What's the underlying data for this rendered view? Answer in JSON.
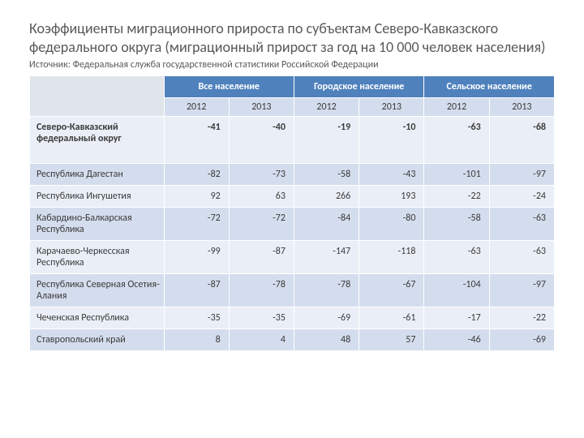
{
  "title": "Коэффициенты миграционного прироста по субъектам Северо-Кавказского федерального округа  (миграционный прирост  за год на 10 000 человек населения)",
  "source": "Источник: Федеральная служба государственной статистики Российской Федерации",
  "table": {
    "type": "table",
    "header_bg": "#4f81bd",
    "header_fg": "#ffffff",
    "subheader_bg": "#d4dded",
    "row_odd_bg": "#eaeff7",
    "row_even_bg": "#d4dded",
    "border_color": "#ffffff",
    "font_size": 12,
    "label_col_width": 165,
    "groups": [
      "Все население",
      "Городское население",
      "Сельское население"
    ],
    "years": [
      "2012",
      "2013"
    ],
    "rows": [
      {
        "label": "Северо-Кавказский федеральный округ",
        "bold": true,
        "values": [
          "-41",
          "-40",
          "-19",
          "-10",
          "-63",
          "-68"
        ]
      },
      {
        "label": "Республика Дагестан",
        "bold": false,
        "values": [
          "-82",
          "-73",
          "-58",
          "-43",
          "-101",
          "-97"
        ]
      },
      {
        "label": "Республика Ингушетия",
        "bold": false,
        "values": [
          "92",
          "63",
          "266",
          "193",
          "-22",
          "-24"
        ]
      },
      {
        "label": "Кабардино-Балкарская Республика",
        "bold": false,
        "values": [
          "-72",
          "-72",
          "-84",
          "-80",
          "-58",
          "-63"
        ]
      },
      {
        "label": "Карачаево-Черкесская Республика",
        "bold": false,
        "values": [
          "-99",
          "-87",
          "-147",
          "-118",
          "-63",
          "-63"
        ]
      },
      {
        "label": "Республика Северная Осетия-Алания",
        "bold": false,
        "values": [
          "-87",
          "-78",
          "-78",
          "-67",
          "-104",
          "-97"
        ]
      },
      {
        "label": "Чеченская Республика",
        "bold": false,
        "values": [
          "-35",
          "-35",
          "-69",
          "-61",
          "-17",
          "-22"
        ]
      },
      {
        "label": "Ставропольский край",
        "bold": false,
        "values": [
          "8",
          "4",
          "48",
          "57",
          "-46",
          "-69"
        ]
      }
    ]
  }
}
